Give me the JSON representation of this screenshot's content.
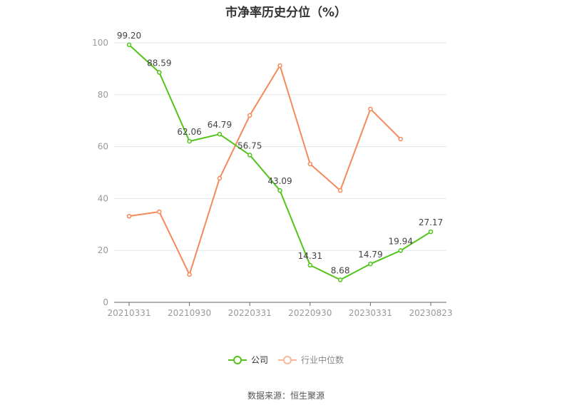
{
  "title": "市净率历史分位（%）",
  "source": "数据来源：恒生聚源",
  "colors": {
    "company": "#52c41a",
    "industry": "#f5895a",
    "grid": "#e3e7ef",
    "axis": "#666666"
  },
  "legend": [
    {
      "name": "公司",
      "color": "#52c41a",
      "icon": "line-circle-icon"
    },
    {
      "name": "行业中位数",
      "color": "#f5895a",
      "icon": "line-circle-icon"
    }
  ],
  "chart_data": {
    "type": "line",
    "title": "市净率历史分位（%）",
    "xlabel": "",
    "ylabel": "",
    "ylim": [
      0,
      100
    ],
    "yticks": [
      0,
      20,
      40,
      60,
      80,
      100
    ],
    "grid": true,
    "legend_position": "bottom",
    "x_tick_labels": [
      "20210331",
      "20210930",
      "20220331",
      "20220930",
      "20230331",
      "20230823"
    ],
    "x_tick_indices": [
      0,
      2,
      4,
      6,
      8,
      10
    ],
    "n_points": 11,
    "series": [
      {
        "name": "公司",
        "color": "#52c41a",
        "values": [
          99.2,
          88.59,
          62.06,
          64.79,
          56.75,
          43.09,
          14.31,
          8.68,
          14.79,
          19.94,
          27.17
        ],
        "labels": [
          "99.20",
          "88.59",
          "62.06",
          "64.79",
          "56.75",
          "43.09",
          "14.31",
          "8.68",
          "14.79",
          "19.94",
          "27.17"
        ]
      },
      {
        "name": "行业中位数",
        "color": "#f5895a",
        "values": [
          33.2,
          34.9,
          10.7,
          47.8,
          72.0,
          91.2,
          53.3,
          43.1,
          74.5,
          62.9,
          null
        ]
      }
    ]
  }
}
